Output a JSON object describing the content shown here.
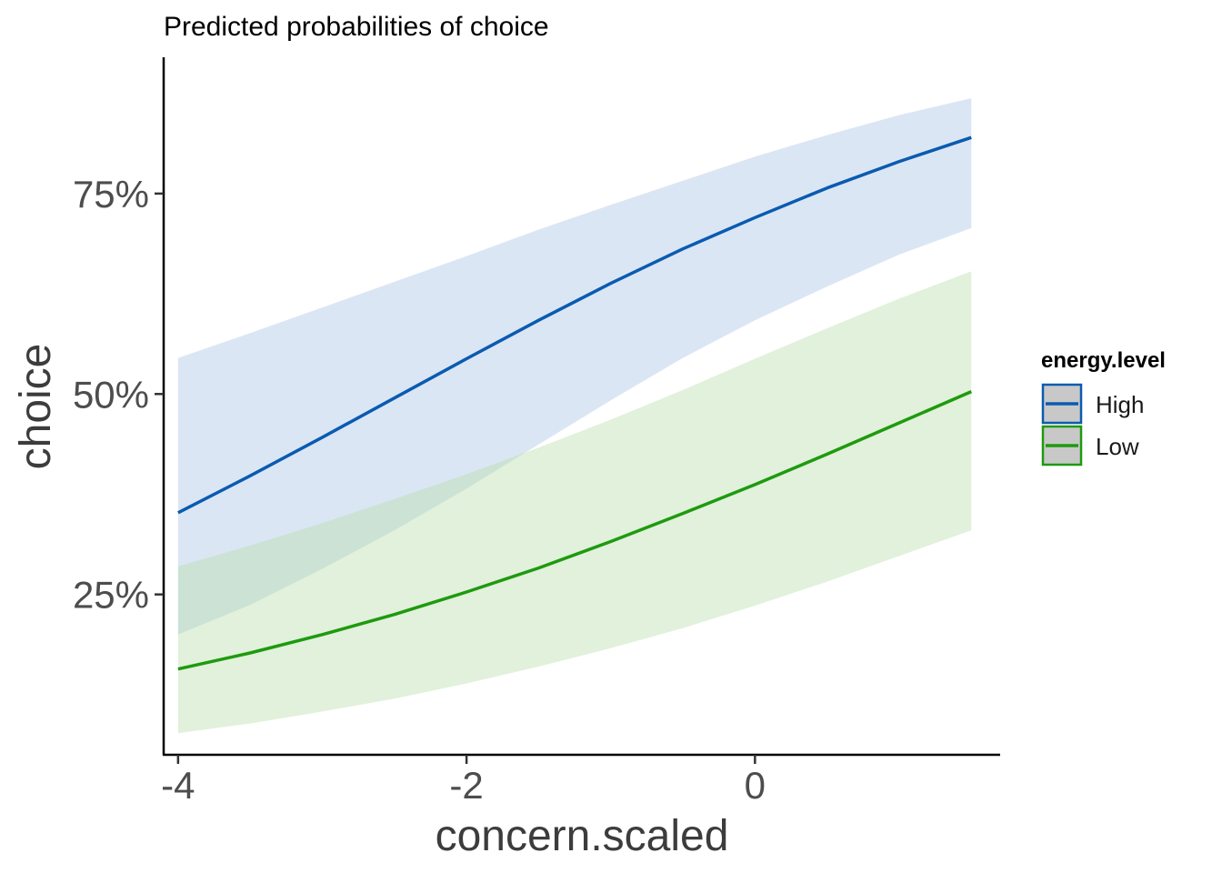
{
  "chart_data": {
    "type": "line",
    "title": "Predicted probabilities of choice",
    "xlabel": "concern.scaled",
    "ylabel": "choice",
    "xlim": [
      -4.1,
      1.7
    ],
    "ylim": [
      0.05,
      0.92
    ],
    "x_ticks": [
      -4,
      -2,
      0
    ],
    "x_tick_labels": [
      "-4",
      "-2",
      "0"
    ],
    "y_ticks": [
      0.25,
      0.5,
      0.75
    ],
    "y_tick_labels": [
      "25%",
      "50%",
      "75%"
    ],
    "grid": false,
    "legend": {
      "title": "energy.level",
      "position": "right"
    },
    "x": [
      -4,
      -3.5,
      -3,
      -2.5,
      -2,
      -1.5,
      -1,
      -0.5,
      0,
      0.5,
      1,
      1.5
    ],
    "series": [
      {
        "name": "High",
        "color": "#0a5bb0",
        "fill": "#a9c4e6",
        "values": [
          0.352,
          0.398,
          0.446,
          0.495,
          0.544,
          0.592,
          0.638,
          0.681,
          0.72,
          0.757,
          0.79,
          0.82
        ],
        "lower": [
          0.2,
          0.237,
          0.282,
          0.33,
          0.382,
          0.437,
          0.492,
          0.545,
          0.592,
          0.634,
          0.674,
          0.707
        ],
        "upper": [
          0.545,
          0.576,
          0.608,
          0.64,
          0.672,
          0.705,
          0.736,
          0.766,
          0.796,
          0.823,
          0.848,
          0.869
        ]
      },
      {
        "name": "Low",
        "color": "#1e9a0f",
        "fill": "#b7ddaa",
        "values": [
          0.157,
          0.177,
          0.2,
          0.225,
          0.253,
          0.283,
          0.316,
          0.351,
          0.387,
          0.425,
          0.464,
          0.503
        ],
        "lower": [
          0.077,
          0.089,
          0.104,
          0.12,
          0.139,
          0.16,
          0.183,
          0.208,
          0.236,
          0.266,
          0.298,
          0.33
        ],
        "upper": [
          0.285,
          0.311,
          0.339,
          0.369,
          0.4,
          0.433,
          0.468,
          0.505,
          0.544,
          0.582,
          0.619,
          0.653
        ]
      }
    ]
  }
}
